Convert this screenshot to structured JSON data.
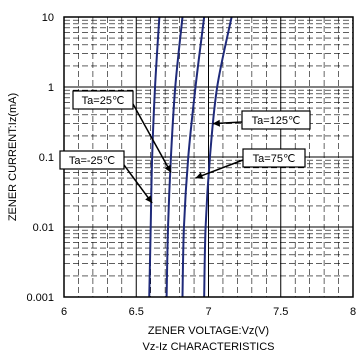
{
  "chart_data": {
    "type": "line",
    "title": "Vz-Iz CHARACTERISTICS",
    "xlabel": "ZENER VOLTAGE:Vz(V)",
    "ylabel": "ZENER CURRENT:Iz(mA)",
    "xlim": [
      6,
      8
    ],
    "ylim": [
      0.001,
      10
    ],
    "yscale": "log",
    "grid": true,
    "x_ticks": [
      "6",
      "6.5",
      "7",
      "7.5",
      "8"
    ],
    "y_ticks": [
      "0.001",
      "0.01",
      "0.1",
      "1",
      "10"
    ],
    "series": [
      {
        "name": "Ta=-25℃",
        "points": [
          [
            6.59,
            0.001
          ],
          [
            6.6,
            0.01
          ],
          [
            6.61,
            0.1
          ],
          [
            6.63,
            1
          ],
          [
            6.66,
            10
          ]
        ]
      },
      {
        "name": "Ta=25℃",
        "points": [
          [
            6.71,
            0.001
          ],
          [
            6.72,
            0.01
          ],
          [
            6.74,
            0.1
          ],
          [
            6.77,
            1
          ],
          [
            6.82,
            10
          ]
        ]
      },
      {
        "name": "Ta=75℃",
        "points": [
          [
            6.82,
            0.001
          ],
          [
            6.83,
            0.01
          ],
          [
            6.86,
            0.1
          ],
          [
            6.91,
            1
          ],
          [
            6.97,
            10
          ]
        ]
      },
      {
        "name": "Ta=125℃",
        "points": [
          [
            6.97,
            0.001
          ],
          [
            6.98,
            0.01
          ],
          [
            7.01,
            0.1
          ],
          [
            7.06,
            1
          ],
          [
            7.16,
            10
          ]
        ]
      }
    ],
    "annotations": [
      {
        "text": "Ta=25℃",
        "target": [
          6.74,
          0.06
        ]
      },
      {
        "text": "Ta=-25℃",
        "target": [
          6.61,
          0.022
        ]
      },
      {
        "text": "Ta=125℃",
        "target": [
          7.03,
          0.3
        ]
      },
      {
        "text": "Ta=75℃",
        "target": [
          6.91,
          0.05
        ]
      }
    ],
    "line_color": "#1f2a7a"
  }
}
